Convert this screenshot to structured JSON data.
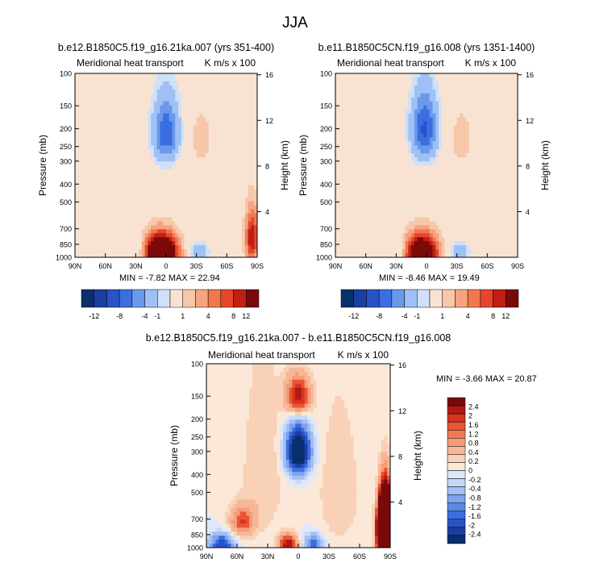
{
  "page": {
    "title": "JJA"
  },
  "colors": {
    "panel_scale": [
      "#08306b",
      "#1a3fa0",
      "#2a52c6",
      "#3b6ee0",
      "#6a98ea",
      "#9ec0f4",
      "#cfe0f8",
      "#f8e3d2",
      "#f7c7aa",
      "#f5a380",
      "#f2774f",
      "#e6462b",
      "#c01f15",
      "#7a0a0a"
    ],
    "diff_scale": [
      "#08306b",
      "#1a3fa0",
      "#2a52c6",
      "#3b6ee0",
      "#5a88e6",
      "#7ea3ee",
      "#a3bff4",
      "#c7d8f8",
      "#dde8fb",
      "#fbe8d8",
      "#f9d1b6",
      "#f7b796",
      "#f59b78",
      "#f27a52",
      "#ea5534",
      "#d7331f",
      "#b01a14",
      "#7a0a0a"
    ],
    "background_value": "#dbe7fb"
  },
  "chart_data": [
    {
      "type": "heatmap",
      "title": "b.e12.B1850C5.f19_g16.21ka.007 (yrs 351-400)",
      "left_label": "Meridional heat transport",
      "right_label": "K m/s x 100",
      "ylabel": "Pressure (mb)",
      "ylabel_right": "Height (km)",
      "x_ticks": [
        "90N",
        "60N",
        "30N",
        "0",
        "30S",
        "60S",
        "90S"
      ],
      "x_values": [
        90,
        60,
        30,
        0,
        -30,
        -60,
        -90
      ],
      "y_ticks": [
        "100",
        "150",
        "200",
        "250",
        "300",
        "400",
        "500",
        "700",
        "850",
        "1000"
      ],
      "y_values": [
        100,
        150,
        200,
        250,
        300,
        400,
        500,
        700,
        850,
        1000
      ],
      "height_ticks": [
        "16",
        "12",
        "8",
        "4"
      ],
      "height_values": [
        16,
        12,
        8,
        4
      ],
      "ylim": [
        1000,
        100
      ],
      "xlim": [
        90,
        -90
      ],
      "log_pressure_axis": true,
      "stats": {
        "min_label": "MIN =",
        "min": "-7.82",
        "max_label": "MAX =",
        "max": "22.94"
      },
      "colorbar_labels": [
        "-12",
        "-8",
        "-4",
        "-1",
        "1",
        "4",
        "8",
        "12"
      ],
      "colorbar_levels": [
        -12,
        -10,
        -8,
        -6,
        -4,
        -2,
        -1,
        1,
        2,
        4,
        6,
        8,
        10,
        12
      ],
      "features": [
        {
          "lat": 5,
          "p": 950,
          "value": 22.94,
          "sigma_lat": 12,
          "sigma_p": 160
        },
        {
          "lat": 0,
          "p": 210,
          "value": -7.82,
          "sigma_lat": 9,
          "sigma_p": 60
        },
        {
          "lat": 27,
          "p": 900,
          "value": -3.5,
          "sigma_lat": 6,
          "sigma_p": 110
        },
        {
          "lat": -32,
          "p": 950,
          "value": -4.0,
          "sigma_lat": 7,
          "sigma_p": 90
        },
        {
          "lat": -35,
          "p": 230,
          "value": 3.0,
          "sigma_lat": 9,
          "sigma_p": 70
        },
        {
          "lat": -85,
          "p": 780,
          "value": 12.0,
          "sigma_lat": 5,
          "sigma_p": 200
        },
        {
          "lat": 65,
          "p": 700,
          "value": 1.5,
          "sigma_lat": 20,
          "sigma_p": 300
        }
      ]
    },
    {
      "type": "heatmap",
      "title": "b.e11.B1850C5CN.f19_g16.008 (yrs 1351-1400)",
      "left_label": "Meridional heat transport",
      "right_label": "K m/s x 100",
      "ylabel": "Pressure (mb)",
      "ylabel_right": "Height (km)",
      "x_ticks": [
        "90N",
        "60N",
        "30N",
        "0",
        "30S",
        "60S",
        "90S"
      ],
      "x_values": [
        90,
        60,
        30,
        0,
        -30,
        -60,
        -90
      ],
      "y_ticks": [
        "100",
        "150",
        "200",
        "250",
        "300",
        "400",
        "500",
        "700",
        "850",
        "1000"
      ],
      "y_values": [
        100,
        150,
        200,
        250,
        300,
        400,
        500,
        700,
        850,
        1000
      ],
      "height_ticks": [
        "16",
        "12",
        "8",
        "4"
      ],
      "height_values": [
        16,
        12,
        8,
        4
      ],
      "ylim": [
        1000,
        100
      ],
      "xlim": [
        90,
        -90
      ],
      "log_pressure_axis": true,
      "stats": {
        "min_label": "MIN =",
        "min": "-8.46",
        "max_label": "MAX =",
        "max": "19.49"
      },
      "colorbar_labels": [
        "-12",
        "-8",
        "-4",
        "-1",
        "1",
        "4",
        "8",
        "12"
      ],
      "colorbar_levels": [
        -12,
        -10,
        -8,
        -6,
        -4,
        -2,
        -1,
        1,
        2,
        4,
        6,
        8,
        10,
        12
      ],
      "features": [
        {
          "lat": 5,
          "p": 950,
          "value": 19.49,
          "sigma_lat": 12,
          "sigma_p": 160
        },
        {
          "lat": 2,
          "p": 200,
          "value": -8.46,
          "sigma_lat": 9,
          "sigma_p": 60
        },
        {
          "lat": 27,
          "p": 900,
          "value": -3.5,
          "sigma_lat": 6,
          "sigma_p": 110
        },
        {
          "lat": -32,
          "p": 950,
          "value": -4.0,
          "sigma_lat": 7,
          "sigma_p": 90
        },
        {
          "lat": -35,
          "p": 230,
          "value": 3.0,
          "sigma_lat": 9,
          "sigma_p": 70
        },
        {
          "lat": -75,
          "p": 700,
          "value": 2.0,
          "sigma_lat": 8,
          "sigma_p": 250
        },
        {
          "lat": 65,
          "p": 700,
          "value": 1.5,
          "sigma_lat": 20,
          "sigma_p": 300
        }
      ]
    },
    {
      "type": "heatmap",
      "title": "b.e12.B1850C5.f19_g16.21ka.007 - b.e11.B1850C5CN.f19_g16.008",
      "left_label": "Meridional heat transport",
      "right_label": "K m/s x 100",
      "ylabel": "Pressure (mb)",
      "ylabel_right": "Height (km)",
      "x_ticks": [
        "90N",
        "60N",
        "30N",
        "0",
        "30S",
        "60S",
        "90S"
      ],
      "x_values": [
        90,
        60,
        30,
        0,
        -30,
        -60,
        -90
      ],
      "y_ticks": [
        "100",
        "150",
        "200",
        "250",
        "300",
        "400",
        "500",
        "700",
        "850",
        "1000"
      ],
      "y_values": [
        100,
        150,
        200,
        250,
        300,
        400,
        500,
        700,
        850,
        1000
      ],
      "height_ticks": [
        "16",
        "12",
        "8",
        "4"
      ],
      "height_values": [
        16,
        12,
        8,
        4
      ],
      "ylim": [
        1000,
        100
      ],
      "xlim": [
        90,
        -90
      ],
      "log_pressure_axis": true,
      "stats": {
        "min_label": "MIN =",
        "min": "-3.66",
        "max_label": "MAX =",
        "max": "20.87"
      },
      "colorbar_labels": [
        "2.4",
        "2",
        "1.6",
        "1.2",
        "0.8",
        "0.4",
        "0.2",
        "0",
        "-0.2",
        "-0.4",
        "-0.8",
        "-1.2",
        "-1.6",
        "-2",
        "-2.4"
      ],
      "colorbar_levels": [
        -2.4,
        -2,
        -1.6,
        -1.2,
        -0.8,
        -0.4,
        -0.2,
        0,
        0.2,
        0.4,
        0.8,
        1.2,
        1.6,
        2,
        2.4
      ],
      "features": [
        {
          "lat": 0,
          "p": 150,
          "value": 2.4,
          "sigma_lat": 8,
          "sigma_p": 25
        },
        {
          "lat": 0,
          "p": 300,
          "value": -3.66,
          "sigma_lat": 8,
          "sigma_p": 60
        },
        {
          "lat": 55,
          "p": 720,
          "value": 1.6,
          "sigma_lat": 8,
          "sigma_p": 90
        },
        {
          "lat": 10,
          "p": 960,
          "value": 2.4,
          "sigma_lat": 6,
          "sigma_p": 80
        },
        {
          "lat": 75,
          "p": 960,
          "value": -2.0,
          "sigma_lat": 8,
          "sigma_p": 80
        },
        {
          "lat": -15,
          "p": 960,
          "value": -1.6,
          "sigma_lat": 6,
          "sigma_p": 80
        },
        {
          "lat": -85,
          "p": 800,
          "value": 20.87,
          "sigma_lat": 4,
          "sigma_p": 180
        },
        {
          "lat": 35,
          "p": 400,
          "value": 0.4,
          "sigma_lat": 15,
          "sigma_p": 300
        },
        {
          "lat": -40,
          "p": 500,
          "value": 0.4,
          "sigma_lat": 15,
          "sigma_p": 300
        }
      ]
    }
  ]
}
